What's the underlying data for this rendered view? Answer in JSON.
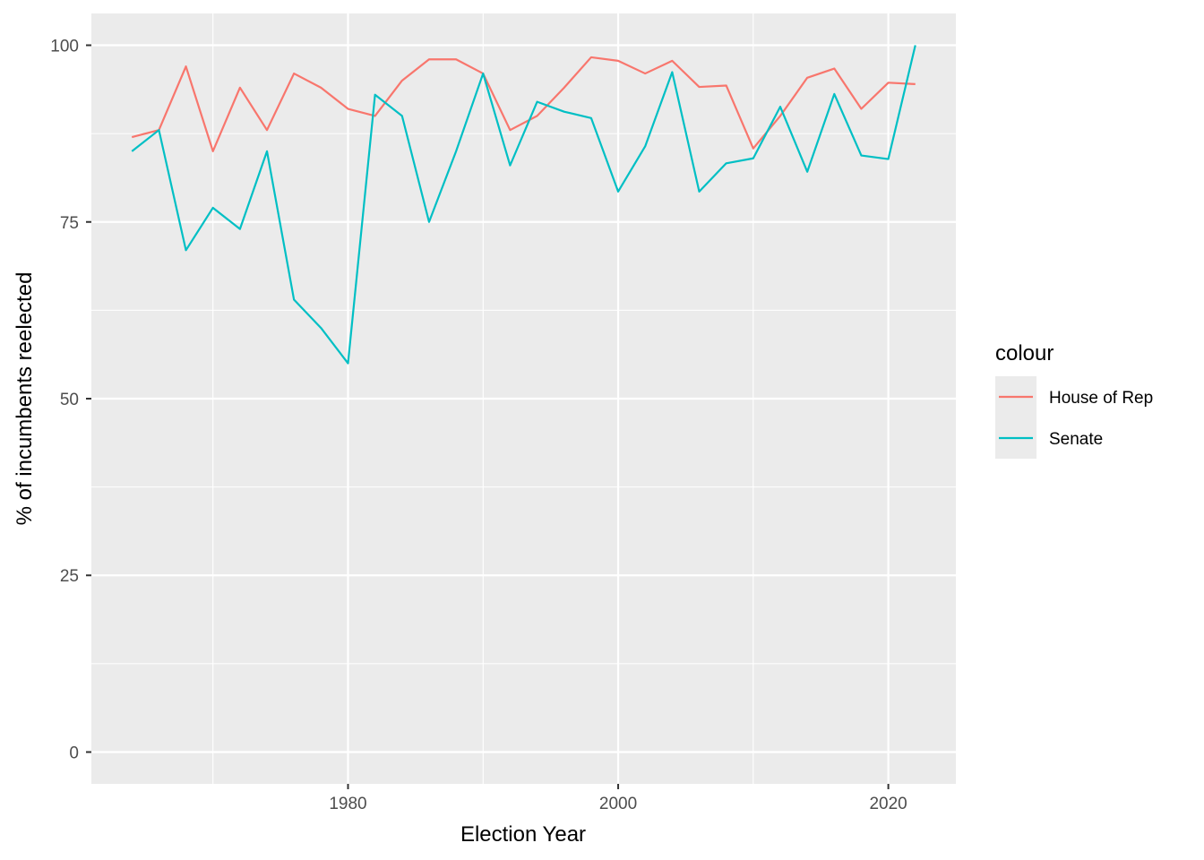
{
  "chart_data": {
    "type": "line",
    "xlabel": "Election Year",
    "ylabel": "% of incumbents reelected",
    "xlim": [
      1961,
      2025
    ],
    "ylim": [
      -4.5,
      104.5
    ],
    "x_ticks": [
      1980,
      2000,
      2020
    ],
    "y_ticks": [
      0,
      25,
      50,
      75,
      100
    ],
    "x": [
      1964,
      1966,
      1968,
      1970,
      1972,
      1974,
      1976,
      1978,
      1980,
      1982,
      1984,
      1986,
      1988,
      1990,
      1992,
      1994,
      1996,
      1998,
      2000,
      2002,
      2004,
      2006,
      2008,
      2010,
      2012,
      2014,
      2016,
      2018,
      2020,
      2022
    ],
    "grid": true,
    "legend": {
      "title": "colour",
      "position": "right"
    },
    "series": [
      {
        "name": "House of Rep",
        "color": "#F8766D",
        "values": [
          87,
          88,
          97,
          85,
          94,
          88,
          96,
          94,
          91,
          90,
          95,
          98,
          98,
          96,
          88,
          90,
          94,
          98.3,
          97.8,
          96,
          97.8,
          94.1,
          94.3,
          85.4,
          90,
          95.4,
          96.7,
          91,
          94.7,
          94.5
        ]
      },
      {
        "name": "Senate",
        "color": "#00BFC4",
        "values": [
          85,
          88,
          71,
          77,
          74,
          85,
          64,
          60,
          55,
          93,
          90,
          75,
          85,
          96,
          83,
          92,
          90.6,
          89.7,
          79.3,
          85.7,
          96.2,
          79.3,
          83.3,
          84,
          91.3,
          82.1,
          93.1,
          84.4,
          83.9,
          100
        ]
      }
    ]
  }
}
